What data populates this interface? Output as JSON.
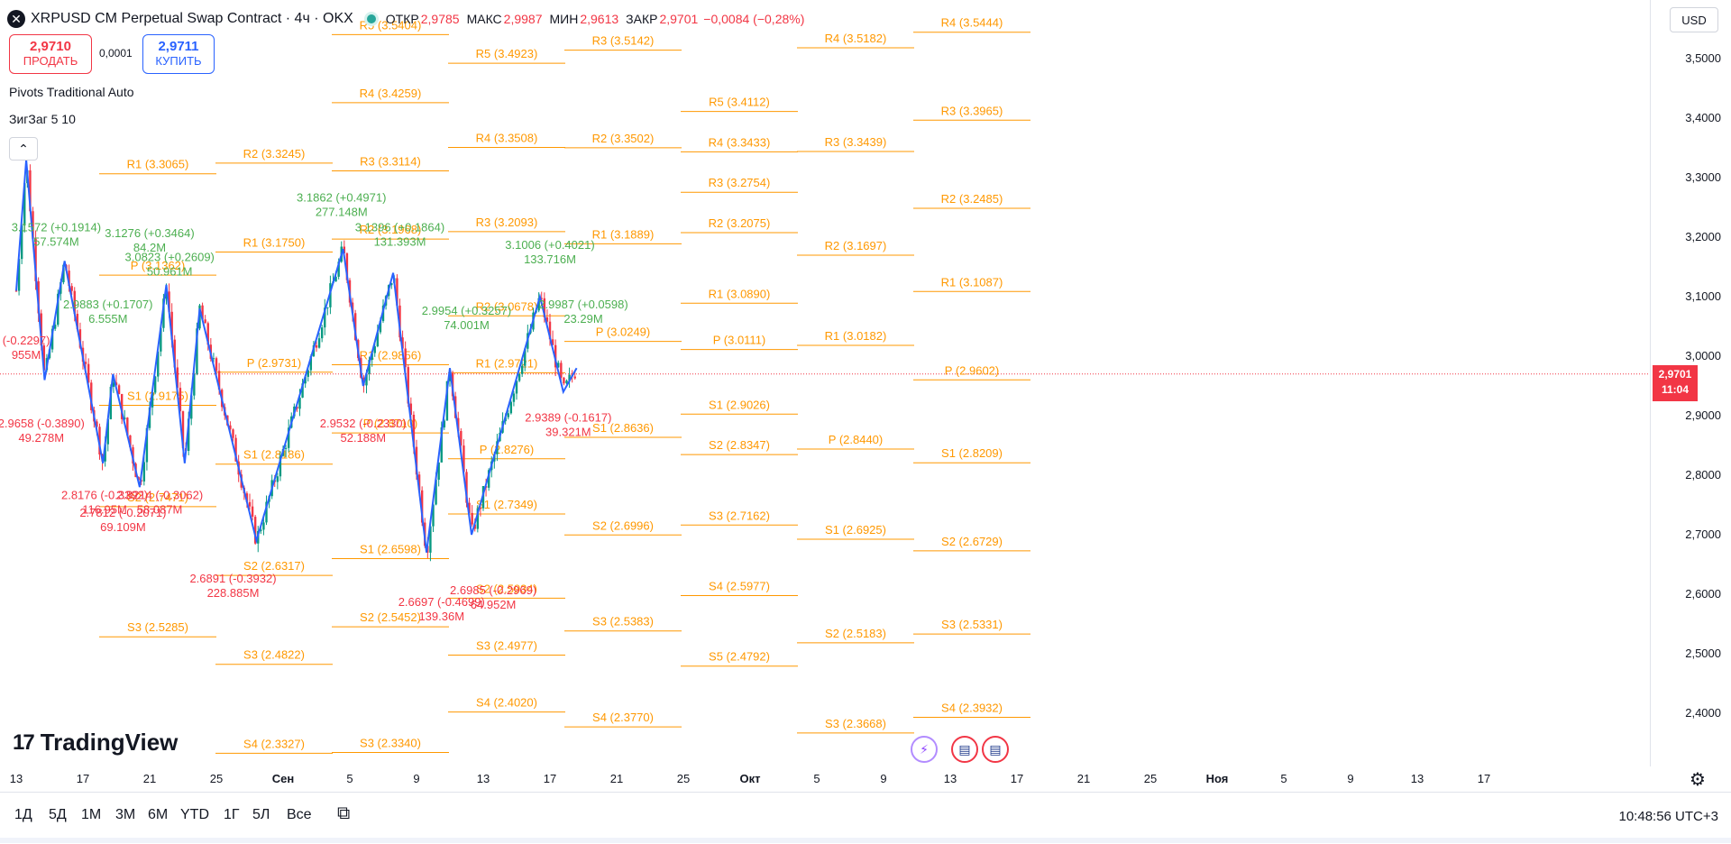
{
  "header": {
    "symbol_icon": "✕",
    "title": "XRPUSD CM Perpetual Swap Contract · 4ч · OKX",
    "open_label": "ОТКР",
    "open_value": "2,9785",
    "high_label": "МАКС",
    "high_value": "2,9987",
    "low_label": "МИН",
    "low_value": "2,9613",
    "close_label": "ЗАКР",
    "close_value": "2,9701",
    "change": "−0,0084 (−0,28%)"
  },
  "trade": {
    "sell_price": "2,9710",
    "sell_label": "ПРОДАТЬ",
    "spread": "0,0001",
    "buy_price": "2,9711",
    "buy_label": "КУПИТЬ"
  },
  "indicators": [
    "Pivots Traditional Auto",
    "ЗигЗаг 5 10"
  ],
  "currency": "USD",
  "last_price": "2,9701",
  "countdown": "11:04",
  "price_axis": [
    "3,5000",
    "3,4000",
    "3,3000",
    "3,2000",
    "3,1000",
    "3,0000",
    "2,9000",
    "2,8000",
    "2,7000",
    "2,6000",
    "2,5000",
    "2,4000"
  ],
  "time_axis": [
    {
      "t": "13",
      "bold": false
    },
    {
      "t": "17",
      "bold": false
    },
    {
      "t": "21",
      "bold": false
    },
    {
      "t": "25",
      "bold": false
    },
    {
      "t": "Сен",
      "bold": true
    },
    {
      "t": "5",
      "bold": false
    },
    {
      "t": "9",
      "bold": false
    },
    {
      "t": "13",
      "bold": false
    },
    {
      "t": "17",
      "bold": false
    },
    {
      "t": "21",
      "bold": false
    },
    {
      "t": "25",
      "bold": false
    },
    {
      "t": "Окт",
      "bold": true
    },
    {
      "t": "5",
      "bold": false
    },
    {
      "t": "9",
      "bold": false
    },
    {
      "t": "13",
      "bold": false
    },
    {
      "t": "17",
      "bold": false
    },
    {
      "t": "21",
      "bold": false
    },
    {
      "t": "25",
      "bold": false
    },
    {
      "t": "Ноя",
      "bold": true
    },
    {
      "t": "5",
      "bold": false
    },
    {
      "t": "9",
      "bold": false
    },
    {
      "t": "13",
      "bold": false
    },
    {
      "t": "17",
      "bold": false
    }
  ],
  "periods": [
    "1Д",
    "5Д",
    "1М",
    "3М",
    "6М",
    "YTD",
    "1Г",
    "5Л",
    "Все"
  ],
  "clock": "10:48:56 UTC+3",
  "logo_text": "TradingView",
  "colors": {
    "pivot": "#ff9800",
    "up": "#089981",
    "down": "#f23645",
    "zigzag": "#2962ff",
    "zz_up_text": "#4caf50",
    "zz_down_text": "#f23645"
  },
  "icons": {
    "gear": "gear-icon",
    "compare": "compare-icon",
    "lightning": "lightning-icon",
    "flag": "us-flag-icon",
    "collapse": "chevron-up-icon"
  },
  "chart_data": {
    "type": "candlestick",
    "ylim": [
      2.33,
      3.56
    ],
    "pivots": [
      {
        "label": "R5 (3.5404)",
        "y": 3.5404,
        "col": 2
      },
      {
        "label": "R5 (3.4923)",
        "y": 3.4923,
        "col": 3
      },
      {
        "label": "R3 (3.5142)",
        "y": 3.5142,
        "col": 4
      },
      {
        "label": "R4 (3.5182)",
        "y": 3.5182,
        "col": 6
      },
      {
        "label": "R4 (3.5444)",
        "y": 3.5444,
        "col": 7
      },
      {
        "label": "R4 (3.4259)",
        "y": 3.4259,
        "col": 2
      },
      {
        "label": "R5 (3.4112)",
        "y": 3.4112,
        "col": 5
      },
      {
        "label": "R3 (3.3965)",
        "y": 3.3965,
        "col": 7
      },
      {
        "label": "R4 (3.3508)",
        "y": 3.3508,
        "col": 3
      },
      {
        "label": "R2 (3.3502)",
        "y": 3.3502,
        "col": 4
      },
      {
        "label": "R4 (3.3433)",
        "y": 3.3433,
        "col": 5
      },
      {
        "label": "R3 (3.3439)",
        "y": 3.3439,
        "col": 6
      },
      {
        "label": "R2 (3.3245)",
        "y": 3.3245,
        "col": 1
      },
      {
        "label": "R3 (3.3114)",
        "y": 3.3114,
        "col": 2
      },
      {
        "label": "R1 (3.3065)",
        "y": 3.3065,
        "col": 0
      },
      {
        "label": "R3 (3.2754)",
        "y": 3.2754,
        "col": 5
      },
      {
        "label": "R2 (3.2485)",
        "y": 3.2485,
        "col": 7
      },
      {
        "label": "R3 (3.2093)",
        "y": 3.2093,
        "col": 3
      },
      {
        "label": "R2 (3.1968)",
        "y": 3.1968,
        "col": 2
      },
      {
        "label": "R2 (3.2075)",
        "y": 3.2075,
        "col": 5
      },
      {
        "label": "R1 (3.1889)",
        "y": 3.1889,
        "col": 4
      },
      {
        "label": "R1 (3.1750)",
        "y": 3.175,
        "col": 1
      },
      {
        "label": "R2 (3.1697)",
        "y": 3.1697,
        "col": 6
      },
      {
        "label": "P (3.1362)",
        "y": 3.1362,
        "col": 0
      },
      {
        "label": "R1 (3.1087)",
        "y": 3.1087,
        "col": 7
      },
      {
        "label": "R1 (3.0890)",
        "y": 3.089,
        "col": 5
      },
      {
        "label": "R2 (3.0678)",
        "y": 3.0678,
        "col": 3
      },
      {
        "label": "P (3.0249)",
        "y": 3.0249,
        "col": 4
      },
      {
        "label": "P (3.0111)",
        "y": 3.0111,
        "col": 5
      },
      {
        "label": "R1 (3.0182)",
        "y": 3.0182,
        "col": 6
      },
      {
        "label": "R1 (2.9856)",
        "y": 2.9856,
        "col": 2
      },
      {
        "label": "P (2.9731)",
        "y": 2.9731,
        "col": 1
      },
      {
        "label": "R1 (2.9721)",
        "y": 2.9721,
        "col": 3
      },
      {
        "label": "P (2.9602)",
        "y": 2.9602,
        "col": 7
      },
      {
        "label": "S1 (2.9175)",
        "y": 2.9175,
        "col": 0
      },
      {
        "label": "S1 (2.9026)",
        "y": 2.9026,
        "col": 5
      },
      {
        "label": "P (2.8710)",
        "y": 2.871,
        "col": 2
      },
      {
        "label": "S1 (2.8636)",
        "y": 2.8636,
        "col": 4
      },
      {
        "label": "P (2.8440)",
        "y": 2.844,
        "col": 6
      },
      {
        "label": "S1 (2.8186)",
        "y": 2.8186,
        "col": 1
      },
      {
        "label": "P (2.8276)",
        "y": 2.8276,
        "col": 3
      },
      {
        "label": "S2 (2.8347)",
        "y": 2.8347,
        "col": 5
      },
      {
        "label": "S1 (2.8209)",
        "y": 2.8209,
        "col": 7
      },
      {
        "label": "S2 (2.7471)",
        "y": 2.7471,
        "col": 0
      },
      {
        "label": "S1 (2.7349)",
        "y": 2.7349,
        "col": 3
      },
      {
        "label": "S3 (2.7162)",
        "y": 2.7162,
        "col": 5
      },
      {
        "label": "S2 (2.6996)",
        "y": 2.6996,
        "col": 4
      },
      {
        "label": "S1 (2.6925)",
        "y": 2.6925,
        "col": 6
      },
      {
        "label": "S2 (2.6729)",
        "y": 2.6729,
        "col": 7
      },
      {
        "label": "S1 (2.6598)",
        "y": 2.6598,
        "col": 2
      },
      {
        "label": "S2 (2.6317)",
        "y": 2.6317,
        "col": 1
      },
      {
        "label": "S2 (2.5934)",
        "y": 2.5934,
        "col": 3
      },
      {
        "label": "S4 (2.5977)",
        "y": 2.5977,
        "col": 5
      },
      {
        "label": "S3 (2.5285)",
        "y": 2.5285,
        "col": 0
      },
      {
        "label": "S2 (2.5452)",
        "y": 2.5452,
        "col": 2
      },
      {
        "label": "S3 (2.5383)",
        "y": 2.5383,
        "col": 4
      },
      {
        "label": "S3 (2.5331)",
        "y": 2.5331,
        "col": 7
      },
      {
        "label": "S2 (2.5183)",
        "y": 2.5183,
        "col": 6
      },
      {
        "label": "S3 (2.4822)",
        "y": 2.4822,
        "col": 1
      },
      {
        "label": "S3 (2.4977)",
        "y": 2.4977,
        "col": 3
      },
      {
        "label": "S5 (2.4792)",
        "y": 2.4792,
        "col": 5
      },
      {
        "label": "S4 (2.4020)",
        "y": 2.402,
        "col": 3
      },
      {
        "label": "S4 (2.3932)",
        "y": 2.3932,
        "col": 7
      },
      {
        "label": "S4 (2.3770)",
        "y": 2.377,
        "col": 4
      },
      {
        "label": "S3 (2.3668)",
        "y": 2.3668,
        "col": 6
      },
      {
        "label": "S4 (2.3327)",
        "y": 2.3327,
        "col": 1
      },
      {
        "label": "S3 (2.3340)",
        "y": 2.334,
        "col": 2
      }
    ],
    "zigzag": [
      {
        "x": 0.0,
        "y": 3.11
      },
      {
        "x": 0.6,
        "y": 3.33
      },
      {
        "x": 1.7,
        "y": 2.96
      },
      {
        "x": 2.9,
        "y": 3.16
      },
      {
        "x": 5.2,
        "y": 2.82
      },
      {
        "x": 5.8,
        "y": 2.97
      },
      {
        "x": 7.4,
        "y": 2.78
      },
      {
        "x": 9.0,
        "y": 3.12
      },
      {
        "x": 10.1,
        "y": 2.82
      },
      {
        "x": 11.0,
        "y": 3.08
      },
      {
        "x": 14.4,
        "y": 2.69
      },
      {
        "x": 19.6,
        "y": 3.18
      },
      {
        "x": 20.8,
        "y": 2.95
      },
      {
        "x": 22.6,
        "y": 3.14
      },
      {
        "x": 24.6,
        "y": 2.67
      },
      {
        "x": 26.0,
        "y": 2.98
      },
      {
        "x": 27.3,
        "y": 2.7
      },
      {
        "x": 31.4,
        "y": 3.1
      },
      {
        "x": 32.8,
        "y": 2.94
      },
      {
        "x": 33.6,
        "y": 2.98
      }
    ],
    "zz_labels": [
      {
        "lines": [
          "3.1572 (+0.1914)",
          "57.574M"
        ],
        "x": 2.4,
        "y": 3.21,
        "dir": "up"
      },
      {
        "lines": [
          "3.1276 (+0.3464)",
          "84.2M"
        ],
        "x": 8.0,
        "y": 3.2,
        "dir": "up"
      },
      {
        "lines": [
          "3.0823 (+0.2609)",
          "50.961M"
        ],
        "x": 9.2,
        "y": 3.16,
        "dir": "up"
      },
      {
        "lines": [
          "2.9883 (+0.1707)",
          "6.555M"
        ],
        "x": 5.5,
        "y": 3.08,
        "dir": "up"
      },
      {
        "lines": [
          "3.1862 (+0.4971)",
          "277.148M"
        ],
        "x": 19.5,
        "y": 3.26,
        "dir": "up"
      },
      {
        "lines": [
          "3.1396 (+0.1864)",
          "131.393M"
        ],
        "x": 23.0,
        "y": 3.21,
        "dir": "up"
      },
      {
        "lines": [
          "2.9954 (+0.3257)",
          "74.001M"
        ],
        "x": 27.0,
        "y": 3.07,
        "dir": "up"
      },
      {
        "lines": [
          "3.1006 (+0.4021)",
          "133.716M"
        ],
        "x": 32.0,
        "y": 3.18,
        "dir": "up"
      },
      {
        "lines": [
          "2.9987 (+0.0598)",
          "23.29M"
        ],
        "x": 34.0,
        "y": 3.08,
        "dir": "up"
      },
      {
        "lines": [
          "2.9658 (-0.3890)",
          "49.278M"
        ],
        "x": 1.5,
        "y": 2.88,
        "dir": "down"
      },
      {
        "lines": [
          "(-0.2297)",
          "955M"
        ],
        "x": 0.6,
        "y": 3.02,
        "dir": "down"
      },
      {
        "lines": [
          "2.8176 (-0.3392)",
          "116.95M"
        ],
        "x": 5.3,
        "y": 2.76,
        "dir": "down"
      },
      {
        "lines": [
          "2.8214 (-0.3062)",
          "58.087M"
        ],
        "x": 8.6,
        "y": 2.76,
        "dir": "down"
      },
      {
        "lines": [
          "2.7812 (-0.2071)",
          "69.109M"
        ],
        "x": 6.4,
        "y": 2.73,
        "dir": "down"
      },
      {
        "lines": [
          "2.6891 (-0.3932)",
          "228.885M"
        ],
        "x": 13.0,
        "y": 2.62,
        "dir": "down"
      },
      {
        "lines": [
          "2.9532 (-0.2330)",
          "52.188M"
        ],
        "x": 20.8,
        "y": 2.88,
        "dir": "down"
      },
      {
        "lines": [
          "2.6697 (-0.4699)",
          "139.36M"
        ],
        "x": 25.5,
        "y": 2.58,
        "dir": "down"
      },
      {
        "lines": [
          "2.6985 (-0.2969)",
          "64.952M"
        ],
        "x": 28.6,
        "y": 2.6,
        "dir": "down"
      },
      {
        "lines": [
          "2.9389 (-0.1617)",
          "39.321M"
        ],
        "x": 33.1,
        "y": 2.89,
        "dir": "down"
      }
    ]
  }
}
